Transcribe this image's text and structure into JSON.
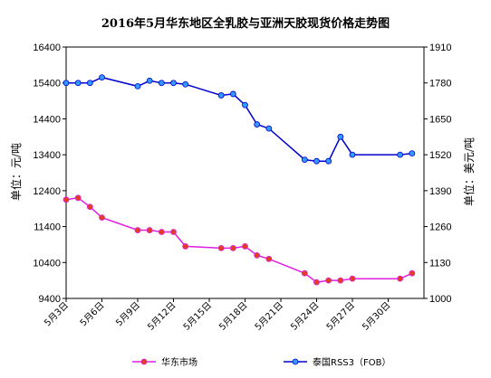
{
  "chart_data": {
    "type": "line",
    "title": "2016年5月华东地区全乳胶与亚洲天胶现货价格走势图",
    "y_left_label": "单位：元/吨",
    "y_right_label": "单位：美元/吨",
    "y_left_ticks": [
      "16400",
      "15400",
      "14400",
      "13400",
      "12400",
      "11400",
      "10400",
      "9400"
    ],
    "y_right_ticks": [
      "1910",
      "1780",
      "1650",
      "1520",
      "1390",
      "1260",
      "1130",
      "1000"
    ],
    "y_left_range": [
      9400,
      16400
    ],
    "y_right_range": [
      1000,
      1910
    ],
    "x_range": [
      3,
      33
    ],
    "x_tick_values": [
      3,
      6,
      9,
      12,
      15,
      18,
      21,
      24,
      27,
      30
    ],
    "x_tick_labels": [
      "5月3日",
      "5月6日",
      "5月9日",
      "5月12日",
      "5月15日",
      "5月18日",
      "5月21日",
      "5月24日",
      "5月27日",
      "5月30日"
    ],
    "grid": false,
    "legend_position": "bottom",
    "series": [
      {
        "name": "华东市场",
        "axis": "left",
        "color": "#e020e0",
        "marker_color": "#e04020",
        "points": [
          [
            3,
            12150
          ],
          [
            4,
            12200
          ],
          [
            5,
            11950
          ],
          [
            6,
            11650
          ],
          [
            9,
            11300
          ],
          [
            10,
            11300
          ],
          [
            11,
            11250
          ],
          [
            12,
            11250
          ],
          [
            13,
            10850
          ],
          [
            16,
            10800
          ],
          [
            17,
            10800
          ],
          [
            18,
            10850
          ],
          [
            19,
            10600
          ],
          [
            20,
            10500
          ],
          [
            23,
            10100
          ],
          [
            24,
            9850
          ],
          [
            25,
            9900
          ],
          [
            26,
            9900
          ],
          [
            27,
            9950
          ],
          [
            31,
            9950
          ],
          [
            32,
            10100
          ]
        ]
      },
      {
        "name": "泰国RSS3（FOB）",
        "axis": "right",
        "color": "#0000d0",
        "marker_color": "#3399ff",
        "points": [
          [
            3,
            1780
          ],
          [
            4,
            1780
          ],
          [
            5,
            1780
          ],
          [
            6,
            1800
          ],
          [
            9,
            1768
          ],
          [
            10,
            1788
          ],
          [
            11,
            1780
          ],
          [
            12,
            1780
          ],
          [
            13,
            1775
          ],
          [
            16,
            1735
          ],
          [
            17,
            1740
          ],
          [
            18,
            1700
          ],
          [
            19,
            1630
          ],
          [
            20,
            1615
          ],
          [
            23,
            1502
          ],
          [
            24,
            1497
          ],
          [
            25,
            1497
          ],
          [
            26,
            1585
          ],
          [
            27,
            1520
          ],
          [
            31,
            1520
          ],
          [
            32,
            1525
          ]
        ]
      }
    ]
  }
}
